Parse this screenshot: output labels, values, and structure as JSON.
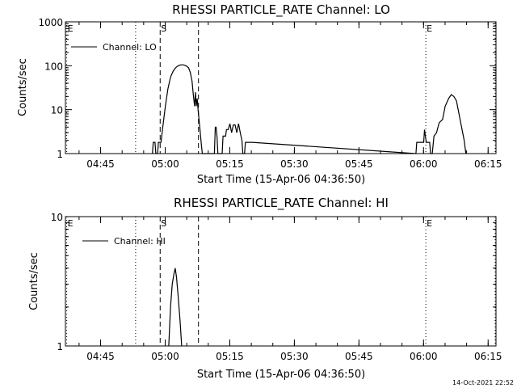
{
  "timestamp": "14-Oct-2021 22:52",
  "chart_data": [
    {
      "type": "line",
      "title": "RHESSI PARTICLE_RATE Channel: LO",
      "xlabel": "Start Time (15-Apr-06 04:36:50)",
      "ylabel": "Counts/sec",
      "yscale": "log",
      "ylim": [
        1,
        1000
      ],
      "yticks": [
        1,
        10,
        100,
        1000
      ],
      "ytick_labels": [
        "1",
        "10",
        "100",
        "1000"
      ],
      "x_unit": "minutes since 04:36:50",
      "xlim": [
        0,
        100
      ],
      "xticks": [
        8.17,
        23.17,
        38.17,
        53.17,
        68.17,
        83.17,
        98.17
      ],
      "xtick_labels": [
        "04:45",
        "05:00",
        "05:15",
        "05:30",
        "05:45",
        "06:00",
        "06:15"
      ],
      "legend": "Channel: LO",
      "markers": [
        {
          "label": "E",
          "x": 0.3,
          "style": "dotted"
        },
        {
          "label": "",
          "x": 16.3,
          "style": "dotted"
        },
        {
          "label": "S",
          "x": 22.0,
          "style": "dashed"
        },
        {
          "label": "",
          "x": 30.9,
          "style": "dashed"
        },
        {
          "label": "E",
          "x": 83.7,
          "style": "dotted"
        },
        {
          "label": "",
          "x": 99.8,
          "style": "dotted"
        }
      ],
      "series": [
        {
          "name": "Channel: LO",
          "points": [
            [
              20.2,
              1.0
            ],
            [
              20.4,
              1.8
            ],
            [
              20.8,
              1.8
            ],
            [
              21.0,
              1.0
            ],
            [
              21.4,
              1.0
            ],
            [
              21.6,
              1.8
            ],
            [
              22.2,
              1.8
            ],
            [
              22.6,
              4
            ],
            [
              23.2,
              12
            ],
            [
              23.8,
              30
            ],
            [
              24.4,
              55
            ],
            [
              25.0,
              75
            ],
            [
              25.6,
              90
            ],
            [
              26.2,
              100
            ],
            [
              26.8,
              105
            ],
            [
              27.4,
              105
            ],
            [
              28.0,
              100
            ],
            [
              28.6,
              90
            ],
            [
              29.0,
              70
            ],
            [
              29.4,
              45
            ],
            [
              29.7,
              22
            ],
            [
              30.0,
              12
            ],
            [
              30.2,
              25
            ],
            [
              30.4,
              12
            ],
            [
              30.6,
              18
            ],
            [
              30.8,
              10
            ],
            [
              31.2,
              4
            ],
            [
              31.6,
              1.5
            ],
            [
              31.8,
              1.0
            ],
            [
              34.6,
              1.0
            ],
            [
              34.8,
              4
            ],
            [
              35.0,
              4
            ],
            [
              35.2,
              2.5
            ],
            [
              35.4,
              1.0
            ],
            [
              36.4,
              1.0
            ],
            [
              36.6,
              2.5
            ],
            [
              37.2,
              2.5
            ],
            [
              37.4,
              3.5
            ],
            [
              37.8,
              3.5
            ],
            [
              38.2,
              4.8
            ],
            [
              38.6,
              3
            ],
            [
              39.0,
              4.5
            ],
            [
              39.4,
              4.5
            ],
            [
              39.8,
              3
            ],
            [
              40.2,
              4.8
            ],
            [
              40.6,
              3
            ],
            [
              41.0,
              2
            ],
            [
              41.2,
              1.0
            ],
            [
              41.6,
              1.0
            ],
            [
              41.8,
              1.8
            ],
            [
              43.4,
              1.8
            ],
            [
              81.4,
              1.0
            ],
            [
              81.6,
              1.8
            ],
            [
              83.2,
              1.8
            ],
            [
              83.4,
              3.5
            ],
            [
              83.6,
              2.5
            ],
            [
              83.8,
              1.8
            ],
            [
              84.6,
              1.8
            ],
            [
              84.8,
              1.0
            ],
            [
              85.2,
              1.0
            ],
            [
              85.6,
              2.5
            ],
            [
              86.2,
              3
            ],
            [
              86.8,
              5
            ],
            [
              87.6,
              6
            ],
            [
              88.2,
              12
            ],
            [
              89.0,
              18
            ],
            [
              89.6,
              22
            ],
            [
              90.2,
              20
            ],
            [
              90.8,
              16
            ],
            [
              91.4,
              8
            ],
            [
              92.0,
              4
            ],
            [
              92.6,
              2
            ],
            [
              93.0,
              1.0
            ]
          ]
        }
      ]
    },
    {
      "type": "line",
      "title": "RHESSI PARTICLE_RATE Channel: HI",
      "xlabel": "Start Time (15-Apr-06 04:36:50)",
      "ylabel": "Counts/sec",
      "yscale": "log",
      "ylim": [
        1,
        10
      ],
      "yticks": [
        1,
        10
      ],
      "ytick_labels": [
        "1",
        "10"
      ],
      "x_unit": "minutes since 04:36:50",
      "xlim": [
        0,
        100
      ],
      "xticks": [
        8.17,
        23.17,
        38.17,
        53.17,
        68.17,
        83.17,
        98.17
      ],
      "xtick_labels": [
        "04:45",
        "05:00",
        "05:15",
        "05:30",
        "05:45",
        "06:00",
        "06:15"
      ],
      "legend": "Channel: HI",
      "markers": [
        {
          "label": "E",
          "x": 0.3,
          "style": "dotted"
        },
        {
          "label": "",
          "x": 16.3,
          "style": "dotted"
        },
        {
          "label": "S",
          "x": 22.0,
          "style": "dashed"
        },
        {
          "label": "",
          "x": 30.9,
          "style": "dashed"
        },
        {
          "label": "E",
          "x": 83.7,
          "style": "dotted"
        },
        {
          "label": "",
          "x": 99.8,
          "style": "dotted"
        }
      ],
      "series": [
        {
          "name": "Channel: HI",
          "points": [
            [
              24.0,
              1.0
            ],
            [
              24.4,
              2.0
            ],
            [
              24.8,
              3.0
            ],
            [
              25.2,
              3.6
            ],
            [
              25.5,
              4.0
            ],
            [
              25.8,
              3.4
            ],
            [
              26.2,
              2.4
            ],
            [
              26.6,
              1.6
            ],
            [
              27.0,
              1.0
            ]
          ]
        }
      ]
    }
  ]
}
